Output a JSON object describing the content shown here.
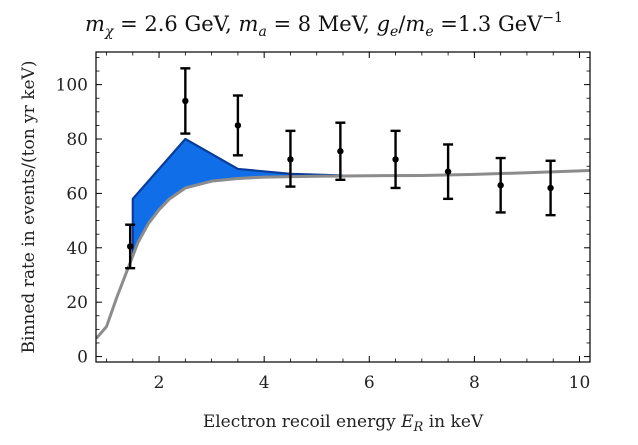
{
  "chart_data": {
    "type": "line",
    "title": "m_χ = 2.6 GeV, m_a = 8 MeV,  g_e/m_e =1.3 GeV⁻¹",
    "title_parts": {
      "m1": "m",
      "s1": "χ",
      "t1": " = 2.6 GeV, ",
      "m2": "m",
      "s2": "a",
      "t2": " = 8 MeV,  ",
      "g": "g",
      "s3": "e",
      "slash": "/",
      "m3": "m",
      "s4": "e",
      "t3": " =1.3 GeV",
      "sup": "−1"
    },
    "xlabel": "Electron recoil energy E_R in keV",
    "xlabel_parts": {
      "pre": "Electron recoil energy ",
      "E": "E",
      "sub": "R",
      "post": " in keV"
    },
    "ylabel": "Binned rate in events/(ton yr keV)",
    "xlim": [
      0.8,
      10.2
    ],
    "ylim": [
      -2,
      112
    ],
    "x_ticks": [
      2,
      4,
      6,
      8,
      10
    ],
    "y_ticks": [
      0,
      20,
      40,
      60,
      80,
      100
    ],
    "grid": false,
    "colors": {
      "signal_fill": "#0f6ee8",
      "signal_edge": "#0a3c9a",
      "background_line": "#8c8c8c",
      "data": "#000000"
    },
    "series": [
      {
        "kind": "background-curve",
        "x": [
          0.82,
          1.0,
          1.2,
          1.4,
          1.6,
          1.8,
          2.0,
          2.2,
          2.5,
          3.0,
          3.5,
          4.0,
          5.0,
          6.0,
          7.0,
          8.0,
          9.0,
          10.0,
          10.2
        ],
        "y": [
          7,
          11,
          22,
          32,
          42,
          49,
          54,
          58,
          62,
          64.5,
          65.5,
          66,
          66.3,
          66.5,
          66.6,
          67,
          67.6,
          68.3,
          68.4
        ]
      },
      {
        "kind": "signal-band-top",
        "x": [
          1.5,
          2.5,
          3.5,
          4.5,
          5.5
        ],
        "y": [
          58,
          80,
          69,
          67.2,
          66.6
        ]
      },
      {
        "kind": "data-points",
        "x": [
          1.45,
          2.5,
          3.5,
          4.5,
          5.45,
          6.5,
          7.5,
          8.5,
          9.45
        ],
        "y": [
          40.5,
          94,
          85,
          72.5,
          75.5,
          72.5,
          68,
          63,
          62
        ],
        "err_low": [
          8,
          12,
          11,
          10,
          10.5,
          10.5,
          10,
          10,
          10
        ],
        "err_high": [
          8,
          12,
          11,
          10.5,
          10.5,
          10.5,
          10,
          10,
          10
        ]
      }
    ]
  }
}
